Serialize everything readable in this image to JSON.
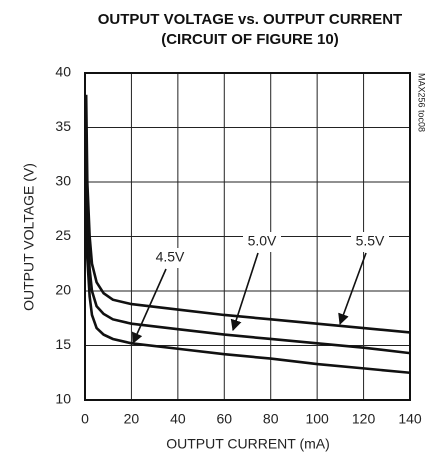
{
  "chart_data": {
    "type": "line",
    "title": [
      "OUTPUT VOLTAGE vs. OUTPUT CURRENT",
      "(CIRCUIT OF FIGURE 10)"
    ],
    "note": "MAX256 toc08",
    "x_label": "OUTPUT CURRENT (mA)",
    "y_label": "OUTPUT VOLTAGE (V)",
    "x": [
      0.5,
      1,
      2,
      3,
      5,
      8,
      12,
      20,
      40,
      60,
      80,
      100,
      120,
      140
    ],
    "series": [
      {
        "name": "4.5V",
        "color": "#111111",
        "values": [
          28,
          23,
          19.5,
          17.8,
          16.6,
          16.0,
          15.6,
          15.2,
          14.7,
          14.2,
          13.8,
          13.3,
          12.9,
          12.5
        ]
      },
      {
        "name": "5.0V",
        "color": "#111111",
        "values": [
          33,
          26,
          22,
          20,
          18.6,
          17.9,
          17.4,
          17.0,
          16.5,
          16.0,
          15.6,
          15.2,
          14.8,
          14.3
        ]
      },
      {
        "name": "5.5V",
        "color": "#111111",
        "values": [
          38,
          30,
          25,
          22.5,
          20.8,
          19.8,
          19.2,
          18.8,
          18.3,
          17.8,
          17.4,
          17.0,
          16.6,
          16.2
        ]
      }
    ],
    "xlim": [
      0,
      140
    ],
    "xticks": [
      0,
      20,
      40,
      60,
      80,
      100,
      120,
      140
    ],
    "ylim": [
      10,
      40
    ],
    "yticks": [
      10,
      15,
      20,
      25,
      30,
      35,
      40
    ],
    "grid": true
  }
}
